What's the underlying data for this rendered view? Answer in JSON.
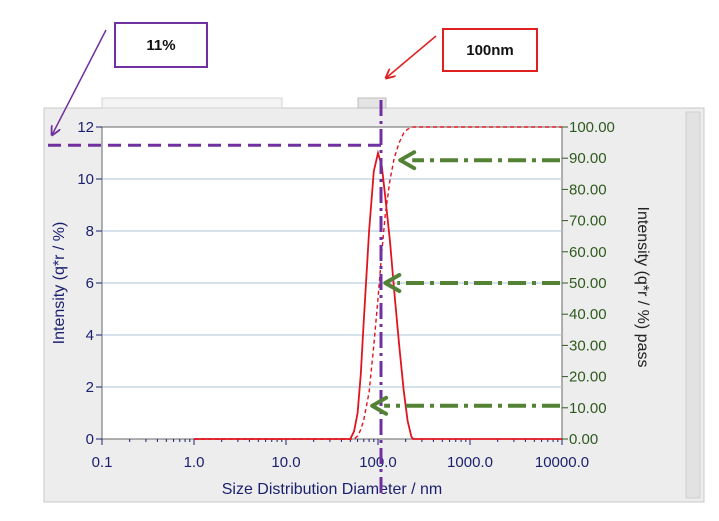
{
  "callouts": {
    "percent_label": "11%",
    "size_label": "100nm"
  },
  "colors": {
    "panel_bg": "#ededed",
    "plot_bg": "#ffffff",
    "grid": "#a8c4dc",
    "left_axis": "#1a1f6e",
    "right_axis": "#2f5a1e",
    "x_axis": "#1a1f6e",
    "distribution": "#e0141e",
    "cumulative": "#e0141e",
    "purple_marker": "#7030a0",
    "green_marker": "#548235",
    "red_arrow": "#e02020"
  },
  "chart_data": {
    "type": "line",
    "xlabel": "Size Distribution Diameter / nm",
    "ylabel": "Intensity (q*r / %)",
    "y2label": "Intensity (q*r / %) pass",
    "x_scale": "log",
    "xlim": [
      0.1,
      10000
    ],
    "ylim": [
      0,
      12
    ],
    "y2lim": [
      0,
      100
    ],
    "x_ticks": [
      0.1,
      1,
      10,
      100,
      1000,
      10000
    ],
    "x_tick_labels": [
      "0.1",
      "1.0",
      "10.0",
      "100.0",
      "1000.0",
      "10000.0"
    ],
    "y_ticks": [
      0,
      2,
      4,
      6,
      8,
      10,
      12
    ],
    "y_tick_labels": [
      "0",
      "2",
      "4",
      "6",
      "8",
      "10",
      "12"
    ],
    "y2_ticks": [
      0,
      10,
      20,
      30,
      40,
      50,
      60,
      70,
      80,
      90,
      100
    ],
    "y2_tick_labels": [
      "0.00",
      "10.00",
      "20.00",
      "30.00",
      "40.00",
      "50.00",
      "60.00",
      "70.00",
      "80.00",
      "90.00",
      "100.00"
    ],
    "grid": "horizontal",
    "series": [
      {
        "style": "solid",
        "axis": "left",
        "x": [
          1,
          50,
          55,
          60,
          65,
          70,
          80,
          90,
          100,
          110,
          120,
          135,
          150,
          170,
          190,
          210,
          230,
          240,
          10000
        ],
        "y": [
          0,
          0,
          0.3,
          1.0,
          2.5,
          4.5,
          8.0,
          10.3,
          11.0,
          10.5,
          9.3,
          7.6,
          5.7,
          3.6,
          1.9,
          0.7,
          0.1,
          0,
          0
        ]
      },
      {
        "style": "dashed",
        "axis": "right",
        "x": [
          1,
          55,
          60,
          65,
          70,
          80,
          90,
          100,
          110,
          120,
          135,
          150,
          170,
          190,
          210,
          240,
          300,
          10000
        ],
        "y": [
          0,
          0,
          1,
          3,
          6,
          15,
          30,
          45,
          60,
          72,
          83,
          90,
          95,
          98,
          99.3,
          100,
          100,
          100
        ]
      }
    ],
    "annotations": [
      {
        "text": "11%",
        "marks": "left y = 11 (dashed purple line to left axis)"
      },
      {
        "text": "100nm",
        "marks": "x = 100 (vertical purple dash-dot line)"
      },
      {
        "marks": "green dash-dot arrows at 90.00, 50.00 and 10.00 on right axis pointing to the cumulative curve"
      }
    ]
  }
}
